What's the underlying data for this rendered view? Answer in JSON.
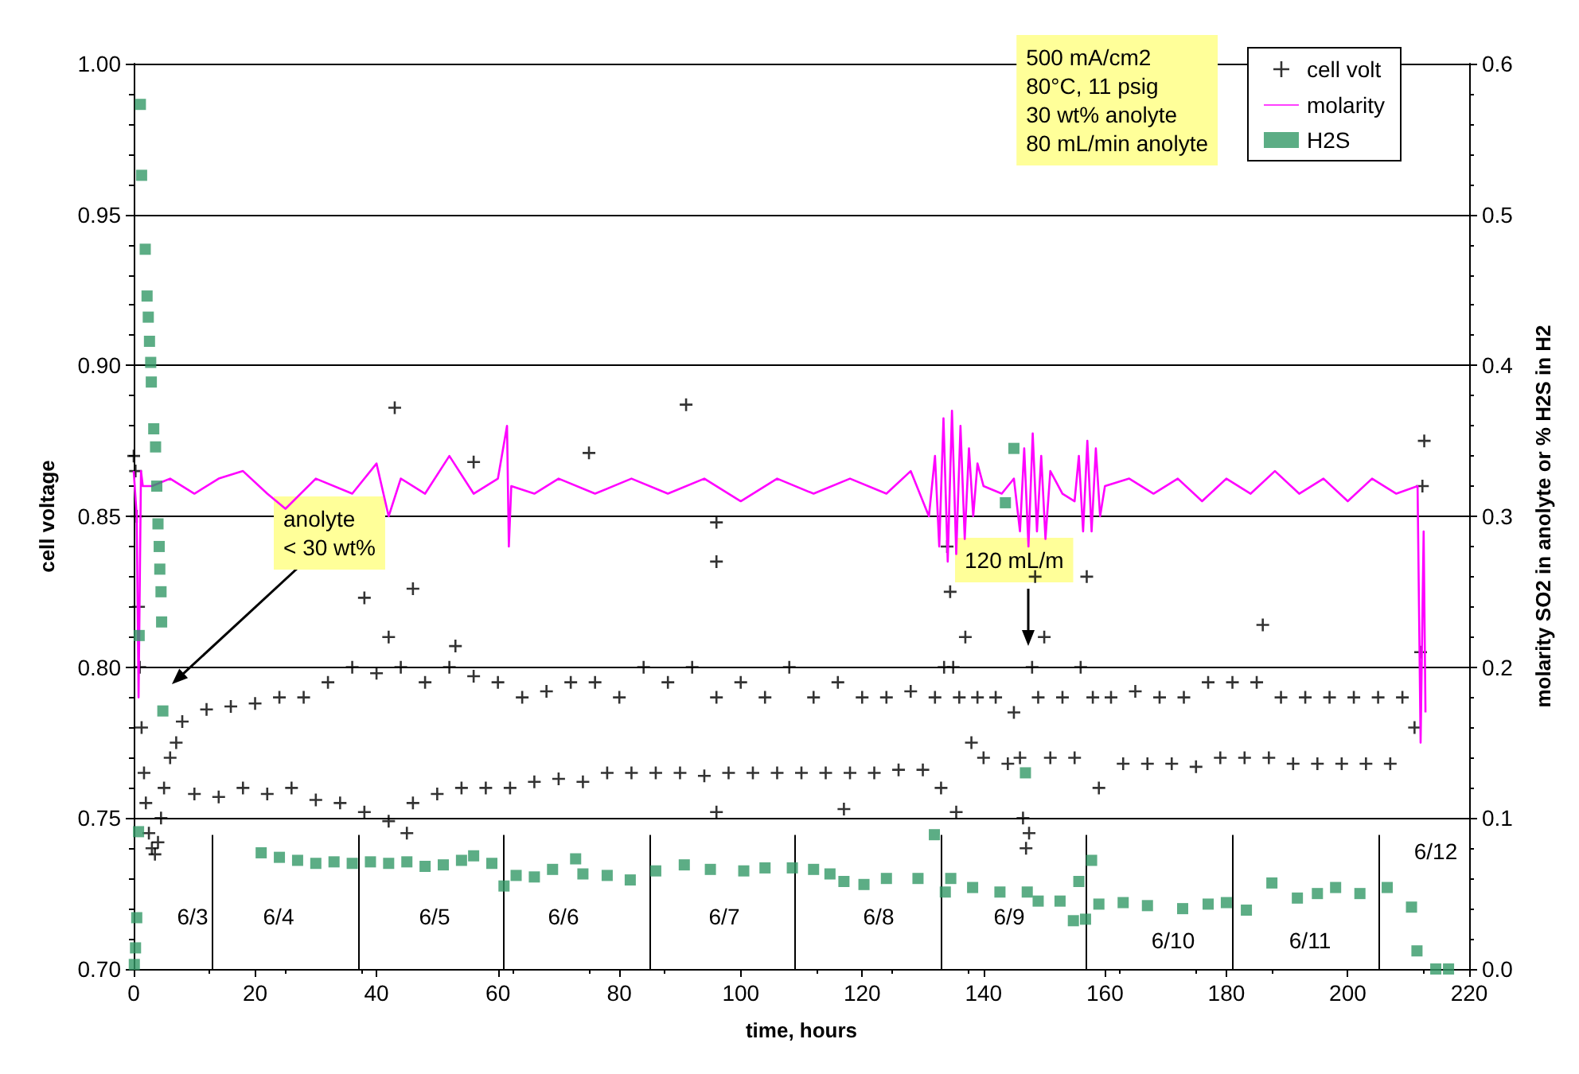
{
  "chart_data": {
    "type": "scatter",
    "xlabel": "time, hours",
    "ylabel": "cell voltage",
    "y2label": "molarity SO2 in anolyte or % H2S in H2",
    "xlim": [
      0,
      220
    ],
    "xticks": [
      0,
      20,
      40,
      60,
      80,
      100,
      120,
      140,
      160,
      180,
      200,
      220
    ],
    "ylim": [
      0.7,
      1.0
    ],
    "yticks": [
      {
        "value": 0.7,
        "label": "0.70"
      },
      {
        "value": 0.75,
        "label": "0.75"
      },
      {
        "value": 0.8,
        "label": "0.80"
      },
      {
        "value": 0.85,
        "label": "0.85"
      },
      {
        "value": 0.9,
        "label": "0.90"
      },
      {
        "value": 0.95,
        "label": "0.95"
      },
      {
        "value": 1.0,
        "label": "1.00"
      }
    ],
    "y2lim": [
      0,
      0.6
    ],
    "y2ticks": [
      {
        "value": 0,
        "label": "0.0"
      },
      0.1,
      0.2,
      0.3,
      0.4,
      0.5,
      0.6
    ],
    "grid": "y",
    "legend": "top right",
    "series": [
      {
        "name": "cell volt",
        "marker": "cross",
        "color": "#000000",
        "x": [
          0,
          0.3,
          0.5,
          0.8,
          1,
          1.3,
          1.7,
          2,
          2.5,
          3,
          3.5,
          4,
          4.5,
          5,
          6,
          7,
          8,
          10,
          12,
          14,
          16,
          18,
          20,
          22,
          24,
          26,
          28,
          30,
          32,
          34,
          36,
          38,
          40,
          42,
          44,
          46,
          48,
          50,
          52,
          54,
          56,
          58,
          60,
          62,
          64,
          66,
          68,
          70,
          72,
          74,
          76,
          78,
          80,
          82,
          84,
          86,
          88,
          90,
          92,
          94,
          96,
          98,
          100,
          102,
          104,
          106,
          108,
          110,
          112,
          114,
          116,
          118,
          120,
          122,
          124,
          126,
          128,
          130,
          132,
          38,
          42,
          43,
          45,
          46,
          53,
          56,
          75,
          91,
          96,
          96,
          96,
          117,
          186,
          133,
          133.5,
          134,
          134.5,
          135,
          135.5,
          136,
          137,
          138,
          139,
          140,
          142,
          144,
          145,
          146,
          146.5,
          147,
          147.5,
          148,
          148.5,
          149,
          150,
          151,
          153,
          155,
          156,
          157,
          158,
          159,
          161,
          163,
          165,
          167,
          169,
          171,
          173,
          175,
          177,
          179,
          181,
          183,
          185,
          187,
          189,
          191,
          193,
          195,
          197,
          199,
          201,
          203,
          205,
          207,
          209,
          211,
          212,
          212.3,
          212.6
        ],
        "values": [
          0.87,
          0.865,
          0.85,
          0.82,
          0.8,
          0.78,
          0.765,
          0.755,
          0.745,
          0.74,
          0.738,
          0.742,
          0.75,
          0.76,
          0.77,
          0.775,
          0.782,
          0.758,
          0.786,
          0.757,
          0.787,
          0.76,
          0.788,
          0.758,
          0.79,
          0.76,
          0.79,
          0.756,
          0.795,
          0.755,
          0.8,
          0.752,
          0.798,
          0.749,
          0.8,
          0.755,
          0.795,
          0.758,
          0.8,
          0.76,
          0.797,
          0.76,
          0.795,
          0.76,
          0.79,
          0.762,
          0.792,
          0.763,
          0.795,
          0.762,
          0.795,
          0.765,
          0.79,
          0.765,
          0.8,
          0.765,
          0.795,
          0.765,
          0.8,
          0.764,
          0.79,
          0.765,
          0.795,
          0.765,
          0.79,
          0.765,
          0.8,
          0.765,
          0.79,
          0.765,
          0.795,
          0.765,
          0.79,
          0.765,
          0.79,
          0.766,
          0.792,
          0.766,
          0.79,
          0.823,
          0.81,
          0.886,
          0.745,
          0.826,
          0.807,
          0.868,
          0.871,
          0.887,
          0.848,
          0.835,
          0.752,
          0.753,
          0.814,
          0.76,
          0.8,
          0.84,
          0.825,
          0.8,
          0.752,
          0.79,
          0.81,
          0.775,
          0.79,
          0.77,
          0.79,
          0.768,
          0.785,
          0.77,
          0.75,
          0.74,
          0.745,
          0.8,
          0.83,
          0.79,
          0.81,
          0.77,
          0.79,
          0.77,
          0.8,
          0.83,
          0.79,
          0.76,
          0.79,
          0.768,
          0.792,
          0.768,
          0.79,
          0.768,
          0.79,
          0.767,
          0.795,
          0.77,
          0.795,
          0.77,
          0.795,
          0.77,
          0.79,
          0.768,
          0.79,
          0.768,
          0.79,
          0.768,
          0.79,
          0.768,
          0.79,
          0.768,
          0.79,
          0.78,
          0.805,
          0.86,
          0.875
        ]
      },
      {
        "name": "molarity",
        "type": "line",
        "axis": "y2",
        "marker": "none",
        "color": "#ff00ff",
        "x": [
          0,
          0.5,
          0.8,
          1.2,
          1.5,
          3,
          6,
          10,
          14,
          18,
          22,
          25,
          30,
          36,
          40,
          42,
          44,
          48,
          52,
          56,
          60,
          61.5,
          61.8,
          62.2,
          66,
          70,
          76,
          82,
          88,
          94,
          100,
          106,
          112,
          118,
          124,
          128,
          131,
          132,
          132.7,
          133.4,
          134.1,
          134.8,
          135.5,
          136.2,
          136.9,
          137.6,
          138.3,
          139,
          140,
          143,
          145,
          146,
          146.7,
          147.4,
          148.1,
          148.8,
          149.5,
          150.2,
          151,
          153,
          155,
          155.7,
          156.4,
          157.1,
          157.8,
          158.5,
          159.2,
          160,
          164,
          168,
          172,
          176,
          180,
          184,
          188,
          192,
          196,
          200,
          204,
          208,
          211.5,
          212,
          212.5,
          212.8
        ],
        "values": [
          0.33,
          0.3,
          0.18,
          0.33,
          0.32,
          0.32,
          0.325,
          0.315,
          0.325,
          0.33,
          0.315,
          0.305,
          0.325,
          0.315,
          0.335,
          0.3,
          0.325,
          0.315,
          0.34,
          0.315,
          0.325,
          0.36,
          0.28,
          0.32,
          0.315,
          0.325,
          0.315,
          0.325,
          0.315,
          0.325,
          0.31,
          0.325,
          0.315,
          0.325,
          0.315,
          0.33,
          0.3,
          0.34,
          0.28,
          0.365,
          0.27,
          0.37,
          0.275,
          0.36,
          0.285,
          0.345,
          0.3,
          0.335,
          0.32,
          0.315,
          0.325,
          0.29,
          0.345,
          0.28,
          0.355,
          0.29,
          0.34,
          0.285,
          0.33,
          0.315,
          0.31,
          0.34,
          0.29,
          0.35,
          0.29,
          0.345,
          0.3,
          0.32,
          0.325,
          0.315,
          0.325,
          0.31,
          0.325,
          0.315,
          0.33,
          0.315,
          0.325,
          0.31,
          0.325,
          0.315,
          0.32,
          0.15,
          0.29,
          0.17
        ]
      },
      {
        "name": "H2S",
        "axis": "y2",
        "marker": "square",
        "color": "#339966",
        "x": [
          0.1,
          0.3,
          0.5,
          0.8,
          0.9,
          1.1,
          1.3,
          1.9,
          2.2,
          2.4,
          2.6,
          2.8,
          2.9,
          3.3,
          3.6,
          3.8,
          4,
          4.2,
          4.3,
          4.5,
          4.6,
          4.8,
          21,
          24,
          27,
          30,
          33,
          36,
          39,
          42,
          45,
          48,
          51,
          54,
          56,
          59,
          61,
          63,
          66,
          69,
          72.8,
          74,
          78,
          81.8,
          86,
          90.7,
          95,
          100.5,
          104,
          108.5,
          112,
          114.7,
          117,
          120.3,
          124,
          129.2,
          131.9,
          133.7,
          134.6,
          138.2,
          142.7,
          143.6,
          145,
          146.9,
          147.2,
          149,
          152.6,
          154.8,
          155.7,
          156.8,
          157.8,
          159,
          163,
          167,
          172.8,
          177,
          180,
          183.3,
          187.5,
          191.7,
          195,
          198,
          202,
          206.5,
          210.5,
          211.4,
          214.5,
          216.6
        ],
        "values": [
          0.003,
          0.014,
          0.034,
          0.091,
          0.221,
          0.573,
          0.526,
          0.477,
          0.446,
          0.432,
          0.416,
          0.402,
          0.389,
          0.358,
          0.346,
          0.32,
          0.295,
          0.28,
          0.265,
          0.25,
          0.23,
          0.171,
          0.077,
          0.074,
          0.072,
          0.07,
          0.071,
          0.07,
          0.071,
          0.07,
          0.071,
          0.068,
          0.069,
          0.072,
          0.075,
          0.07,
          0.055,
          0.062,
          0.061,
          0.066,
          0.073,
          0.063,
          0.062,
          0.059,
          0.065,
          0.069,
          0.066,
          0.065,
          0.067,
          0.067,
          0.066,
          0.063,
          0.058,
          0.056,
          0.06,
          0.06,
          0.089,
          0.051,
          0.06,
          0.054,
          0.051,
          0.309,
          0.345,
          0.13,
          0.051,
          0.045,
          0.045,
          0.032,
          0.058,
          0.033,
          0.072,
          0.043,
          0.044,
          0.042,
          0.04,
          0.043,
          0.044,
          0.039,
          0.057,
          0.047,
          0.05,
          0.054,
          0.05,
          0.054,
          0.041,
          0.012,
          0.0,
          0.0
        ]
      }
    ],
    "ref_lines": [
      {
        "axis": "x",
        "value": 13,
        "color": "#000000"
      },
      {
        "axis": "x",
        "value": 37,
        "color": "#000000"
      },
      {
        "axis": "x",
        "value": 61,
        "color": "#000000"
      },
      {
        "axis": "x",
        "value": 85,
        "color": "#000000"
      },
      {
        "axis": "x",
        "value": 109,
        "color": "#000000"
      },
      {
        "axis": "x",
        "value": 133,
        "color": "#000000"
      },
      {
        "axis": "x",
        "value": 157,
        "color": "#000000"
      },
      {
        "axis": "x",
        "value": 181,
        "color": "#000000"
      },
      {
        "axis": "x",
        "value": 205,
        "color": "#000000"
      }
    ],
    "annotations": [
      "500 mA/cm2\n80°C, 11 psig\n30 wt% anolyte\n80 mL/min anolyte",
      "anolyte\n< 30 wt%",
      "120 mL/m",
      "6/3",
      "6/4",
      "6/5",
      "6/6",
      "6/7",
      "6/8",
      "6/9",
      "6/10",
      "6/11",
      "6/12"
    ]
  }
}
